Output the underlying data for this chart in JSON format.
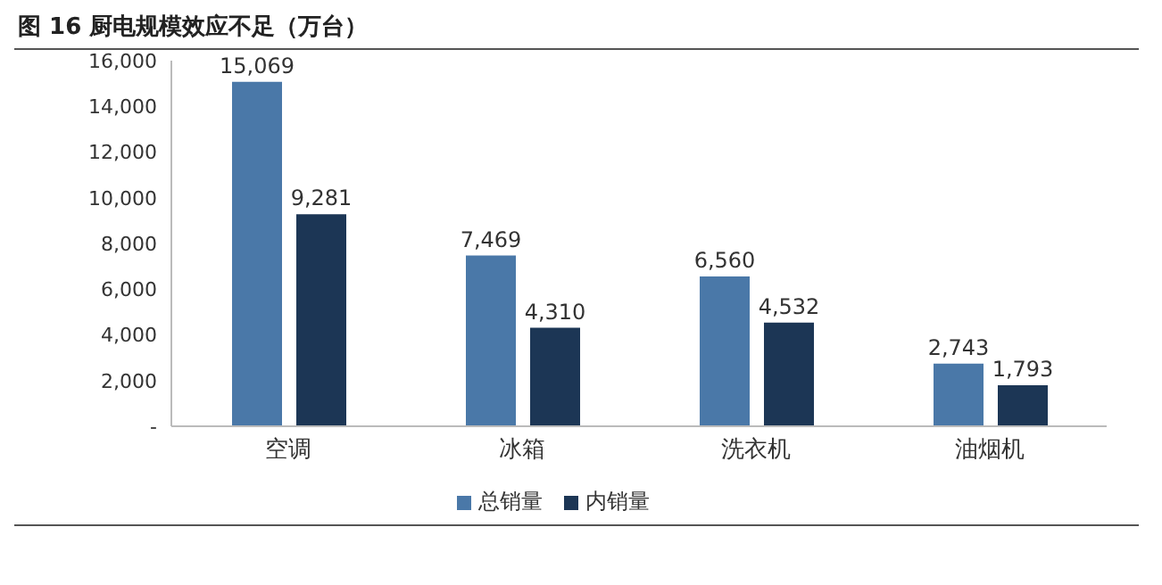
{
  "chart_data": {
    "type": "bar",
    "title": "图 16 厨电规模效应不足（万台）",
    "categories": [
      "空调",
      "冰箱",
      "洗衣机",
      "油烟机"
    ],
    "series": [
      {
        "name": "总销量",
        "color": "#4a78a8",
        "values": [
          15069,
          7469,
          6560,
          2743
        ],
        "value_labels": [
          "15,069",
          "7,469",
          "6,560",
          "2,743"
        ]
      },
      {
        "name": "内销量",
        "color": "#1c3655",
        "values": [
          9281,
          4310,
          4532,
          1793
        ],
        "value_labels": [
          "9,281",
          "4,310",
          "4,532",
          "1,793"
        ]
      }
    ],
    "ylim": [
      0,
      16000
    ],
    "yticks": [
      {
        "value": 0,
        "label": "-"
      },
      {
        "value": 2000,
        "label": "2,000"
      },
      {
        "value": 4000,
        "label": "4,000"
      },
      {
        "value": 6000,
        "label": "6,000"
      },
      {
        "value": 8000,
        "label": "8,000"
      },
      {
        "value": 10000,
        "label": "10,000"
      },
      {
        "value": 12000,
        "label": "12,000"
      },
      {
        "value": 14000,
        "label": "14,000"
      },
      {
        "value": 16000,
        "label": "16,000"
      }
    ],
    "grid": false,
    "legend": "bottom"
  }
}
